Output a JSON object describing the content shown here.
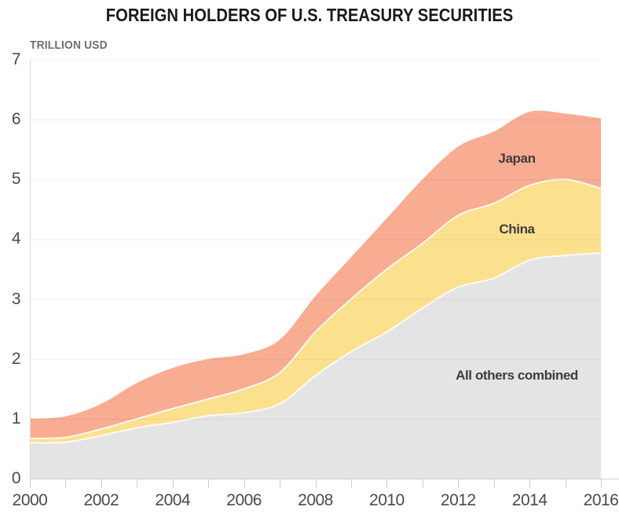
{
  "title": "FOREIGN HOLDERS OF U.S. TREASURY SECURITIES",
  "y_axis_unit": "TRILLION USD",
  "colors": {
    "title_text": "#1B1B1B",
    "unit_text": "#6E6E6E",
    "axis_tick_text": "#4A4A4A",
    "series_label_text": "#3D3D3D",
    "gridline": "#E9E9E9",
    "axis_line": "#D8D8D8",
    "tick_mark": "#CFCFCF",
    "japan_area": "#F8AC92",
    "china_area": "#FBE08E",
    "others_area": "#E4E4E4",
    "boundary_stroke": "#FFFFFF"
  },
  "chart_data": {
    "type": "area",
    "stacked": true,
    "title": "FOREIGN HOLDERS OF U.S. TREASURY SECURITIES",
    "xlabel": "",
    "ylabel": "TRILLION USD",
    "ylim": [
      0,
      7
    ],
    "xlim": [
      2000,
      2016
    ],
    "grid": "horizontal",
    "legend_position": "inline-labels",
    "x": [
      2000,
      2001,
      2002,
      2003,
      2004,
      2005,
      2006,
      2007,
      2008,
      2009,
      2010,
      2011,
      2012,
      2013,
      2014,
      2015,
      2016
    ],
    "x_tick_labels": [
      "2000",
      "2002",
      "2004",
      "2006",
      "2008",
      "2010",
      "2012",
      "2014",
      "2016"
    ],
    "y_ticks": [
      0,
      1,
      2,
      3,
      4,
      5,
      6,
      7
    ],
    "series": [
      {
        "name": "All others combined",
        "color": "#E4E4E4",
        "values": [
          0.6,
          0.61,
          0.72,
          0.85,
          0.94,
          1.05,
          1.1,
          1.25,
          1.72,
          2.12,
          2.45,
          2.85,
          3.2,
          3.35,
          3.65,
          3.73,
          3.77
        ]
      },
      {
        "name": "China",
        "color": "#FBE08E",
        "values": [
          0.07,
          0.08,
          0.11,
          0.15,
          0.23,
          0.28,
          0.4,
          0.52,
          0.73,
          0.88,
          1.05,
          1.08,
          1.2,
          1.25,
          1.25,
          1.27,
          1.08
        ]
      },
      {
        "name": "Japan",
        "color": "#F8AC92",
        "values": [
          0.33,
          0.35,
          0.42,
          0.6,
          0.68,
          0.67,
          0.58,
          0.55,
          0.6,
          0.7,
          0.85,
          1.07,
          1.15,
          1.2,
          1.23,
          1.1,
          1.17
        ]
      }
    ],
    "totals": [
      1.0,
      1.04,
      1.25,
      1.6,
      1.85,
      2.0,
      2.08,
      2.32,
      3.05,
      3.7,
      4.35,
      5.0,
      5.55,
      5.8,
      6.13,
      6.1,
      6.02
    ]
  }
}
